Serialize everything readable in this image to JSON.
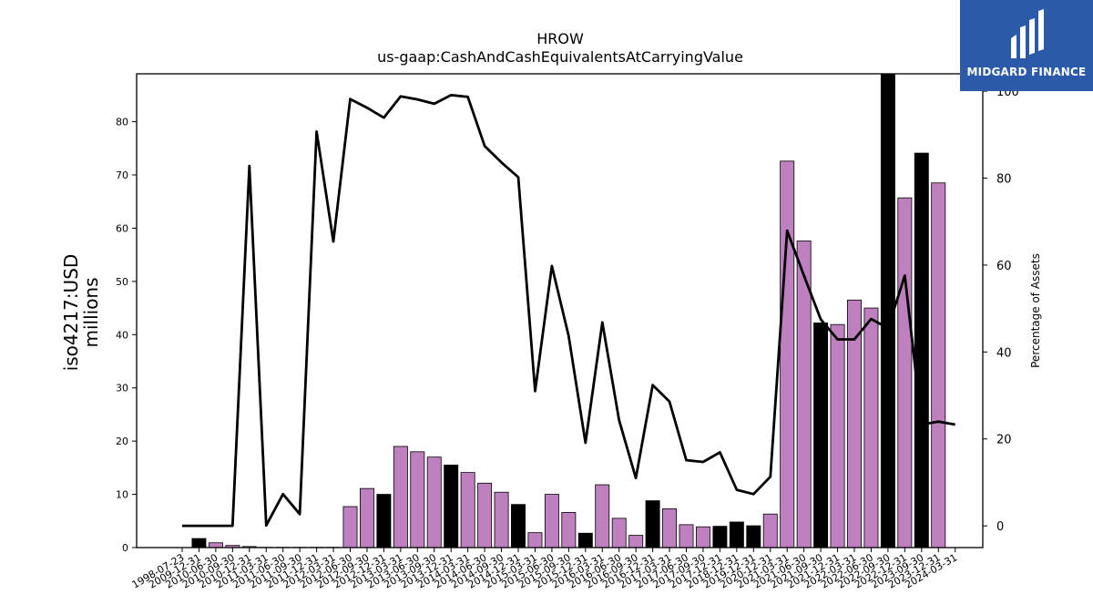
{
  "brand": {
    "name": "MIDGARD FINANCE"
  },
  "chart_data": {
    "type": "bar",
    "title": "HROW",
    "subtitle": "us-gaap:CashAndCashEquivalentsAtCarryingValue",
    "ylabel": "iso4217:USD\nmillions",
    "y2label": "Percentage of Assets",
    "ylim": [
      0,
      89
    ],
    "y2lim": [
      -5,
      104
    ],
    "yticks": [
      0,
      10,
      20,
      30,
      40,
      50,
      60,
      70,
      80
    ],
    "y2ticks": [
      0,
      20,
      40,
      60,
      80,
      100
    ],
    "colors": {
      "annual": "#000000",
      "quarterly": "#bf80bf",
      "line": "#000000"
    },
    "categories": [
      "1998-07-23",
      "2009-12-31",
      "2010-06-30",
      "2010-09-30",
      "2010-12-31",
      "2011-03-31",
      "2011-06-30",
      "2011-09-30",
      "2011-12-31",
      "2012-03-31",
      "2012-06-30",
      "2012-09-30",
      "2012-12-31",
      "2013-03-31",
      "2013-06-30",
      "2013-09-30",
      "2013-12-31",
      "2014-03-31",
      "2014-06-30",
      "2014-09-30",
      "2014-12-31",
      "2015-03-31",
      "2015-06-30",
      "2015-09-30",
      "2015-12-31",
      "2016-03-31",
      "2016-06-30",
      "2016-09-30",
      "2016-12-31",
      "2017-03-31",
      "2017-06-30",
      "2017-09-30",
      "2017-12-31",
      "2018-12-31",
      "2019-12-31",
      "2020-12-31",
      "2021-03-31",
      "2021-06-30",
      "2021-09-30",
      "2021-12-31",
      "2022-03-31",
      "2022-06-30",
      "2022-09-30",
      "2022-12-31",
      "2023-09-30",
      "2023-12-31",
      "2024-03-31"
    ],
    "series": [
      {
        "type": "bar",
        "values": [
          0,
          1.7,
          0.9,
          0.4,
          0.2,
          0.05,
          0.05,
          0.05,
          0.05,
          0.05,
          7.7,
          11.1,
          10.0,
          19.0,
          18.0,
          17.0,
          15.5,
          14.1,
          12.1,
          10.4,
          8.1,
          2.8,
          10.0,
          6.6,
          2.7,
          11.8,
          5.5,
          2.3,
          8.8,
          7.3,
          4.3,
          3.9,
          4.0,
          4.8,
          4.1,
          6.3,
          72.6,
          57.6,
          42.2,
          41.9,
          46.5,
          45.0,
          89.0,
          65.7,
          74.1,
          68.5,
          0
        ],
        "kinds": [
          "q",
          "a",
          "q",
          "q",
          "q",
          "q",
          "q",
          "q",
          "q",
          "q",
          "q",
          "q",
          "a",
          "q",
          "q",
          "q",
          "a",
          "q",
          "q",
          "q",
          "a",
          "q",
          "q",
          "q",
          "a",
          "q",
          "q",
          "q",
          "a",
          "q",
          "q",
          "q",
          "a",
          "a",
          "a",
          "q",
          "q",
          "q",
          "a",
          "q",
          "q",
          "q",
          "a",
          "q",
          "a",
          "q",
          "q"
        ]
      },
      {
        "type": "line",
        "axis": "right",
        "values": [
          0,
          0,
          0,
          0,
          82.8,
          0.1,
          7.3,
          2.7,
          90.7,
          65.4,
          98.2,
          96.2,
          93.9,
          98.8,
          98.1,
          97.1,
          99.1,
          98.7,
          87.4,
          83.6,
          80.2,
          31.0,
          59.8,
          43.7,
          19.1,
          46.8,
          24.3,
          11.0,
          32.4,
          28.6,
          15.1,
          14.7,
          16.9,
          8.3,
          7.3,
          11.3,
          67.9,
          57.6,
          47.5,
          42.9,
          42.9,
          47.6,
          45.5,
          57.6,
          23.3,
          24.0,
          23.3
        ]
      }
    ]
  }
}
